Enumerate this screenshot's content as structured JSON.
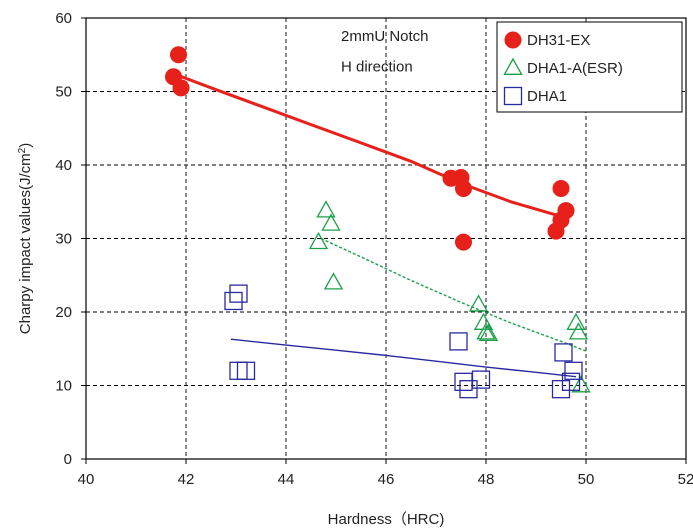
{
  "chart_data": {
    "type": "scatter",
    "xlabel": "Hardness（HRC)",
    "ylabel_main": "Charpy impact values(J/cm",
    "ylabel_sup": "2",
    "ylabel_tail": ")",
    "xlim": [
      40,
      52
    ],
    "ylim": [
      0,
      60
    ],
    "xticks": [
      40,
      42,
      44,
      46,
      48,
      50,
      52
    ],
    "yticks": [
      0,
      10,
      20,
      30,
      40,
      50,
      60
    ],
    "xtick_labels": [
      "40",
      "42",
      "44",
      "46",
      "48",
      "50",
      "52"
    ],
    "ytick_labels": [
      "0",
      "10",
      "20",
      "30",
      "40",
      "50",
      "60"
    ],
    "grid": true,
    "legend_position": "top-right",
    "annotations": [
      "2mmU Notch",
      "H direction"
    ],
    "series": [
      {
        "name": "DH31-EX",
        "marker": "filled-circle",
        "color": "#e8201a",
        "points": [
          [
            41.75,
            52
          ],
          [
            41.85,
            55
          ],
          [
            41.9,
            50.5
          ],
          [
            47.3,
            38.2
          ],
          [
            47.5,
            38.3
          ],
          [
            47.55,
            36.8
          ],
          [
            47.55,
            29.5
          ],
          [
            49.4,
            31
          ],
          [
            49.5,
            36.8
          ],
          [
            49.5,
            32.5
          ],
          [
            49.6,
            33.8
          ]
        ],
        "trend": {
          "style": "solid",
          "points": [
            [
              41.8,
              52.3
            ],
            [
              42.5,
              50.5
            ],
            [
              43.5,
              48
            ],
            [
              44.5,
              45.5
            ],
            [
              45.5,
              43
            ],
            [
              46.5,
              40.5
            ],
            [
              47.5,
              37.5
            ],
            [
              48.5,
              35
            ],
            [
              49.5,
              33
            ]
          ]
        }
      },
      {
        "name": "DHA1-A(ESR)",
        "marker": "open-triangle",
        "color": "#1aa04a",
        "points": [
          [
            44.65,
            29.5
          ],
          [
            44.8,
            33.8
          ],
          [
            44.9,
            32
          ],
          [
            44.95,
            24
          ],
          [
            47.85,
            21
          ],
          [
            47.95,
            18.5
          ],
          [
            48.0,
            17.2
          ],
          [
            48.05,
            17
          ],
          [
            49.8,
            18.5
          ],
          [
            49.85,
            17.2
          ],
          [
            49.9,
            10
          ]
        ],
        "trend": {
          "style": "dashed",
          "points": [
            [
              44.7,
              30
            ],
            [
              45.5,
              27.5
            ],
            [
              46.5,
              24.3
            ],
            [
              47.5,
              21.3
            ],
            [
              48.5,
              18.5
            ],
            [
              49.5,
              16
            ],
            [
              50.0,
              14.7
            ]
          ]
        }
      },
      {
        "name": "DHA1",
        "marker": "open-square",
        "color": "#2a2aa0",
        "points": [
          [
            42.95,
            21.5
          ],
          [
            43.05,
            22.5
          ],
          [
            43.05,
            12
          ],
          [
            43.2,
            12
          ],
          [
            47.45,
            16
          ],
          [
            47.55,
            10.5
          ],
          [
            47.65,
            9.5
          ],
          [
            47.9,
            10.8
          ],
          [
            49.5,
            9.5
          ],
          [
            49.55,
            14.5
          ],
          [
            49.7,
            10.5
          ],
          [
            49.75,
            12
          ]
        ],
        "trend": {
          "style": "solid",
          "points": [
            [
              42.9,
              16.3
            ],
            [
              44,
              15.5
            ],
            [
              45,
              14.8
            ],
            [
              46,
              14.1
            ],
            [
              47,
              13.3
            ],
            [
              48,
              12.5
            ],
            [
              49,
              11.8
            ],
            [
              49.8,
              11.2
            ]
          ]
        }
      }
    ]
  }
}
